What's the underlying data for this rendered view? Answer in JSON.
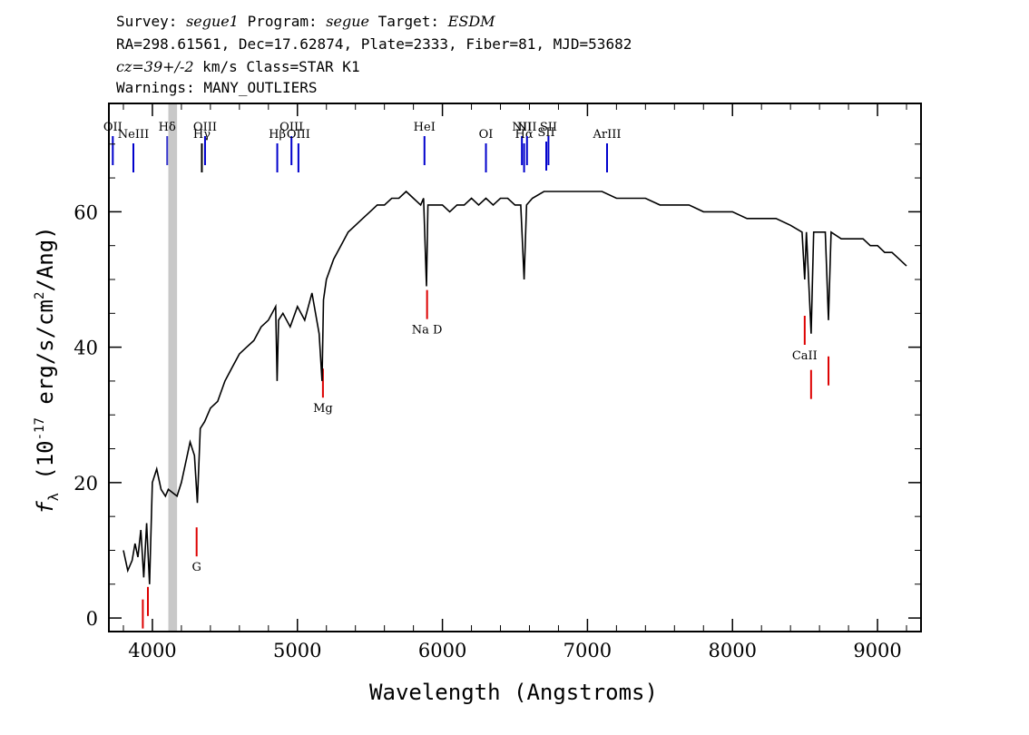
{
  "header": {
    "line1": {
      "survey_label": "Survey: ",
      "survey": "segue1",
      "program_label": " Program: ",
      "program": "segue",
      "target_label": " Target: ",
      "target": "ESDM"
    },
    "line2": "RA=298.61561, Dec=17.62874, Plate=2333, Fiber=81, MJD=53682",
    "line3": {
      "cz": "cz=39+/-2",
      "rest": " km/s Class=STAR K1"
    },
    "line4": "Warnings: MANY_OUTLIERS"
  },
  "chart_data": {
    "type": "line",
    "xlabel": "Wavelength (Angstroms)",
    "ylabel_prefix": "f",
    "ylabel_sub": "λ",
    "ylabel_text1": " (10",
    "ylabel_sup1": "-17",
    "ylabel_text2": " erg/s/cm",
    "ylabel_sup2": "2",
    "ylabel_text3": "/Ang)",
    "xlim": [
      3700,
      9300
    ],
    "ylim": [
      -2,
      76
    ],
    "xticks": [
      4000,
      5000,
      6000,
      7000,
      8000,
      9000
    ],
    "yticks": [
      0,
      20,
      40,
      60
    ],
    "masked_band": [
      4110,
      4170
    ],
    "series": [
      {
        "color": "#000000",
        "x": [
          3800,
          3830,
          3860,
          3880,
          3900,
          3920,
          3940,
          3960,
          3980,
          4000,
          4030,
          4060,
          4090,
          4110,
          4170,
          4200,
          4230,
          4260,
          4290,
          4310,
          4330,
          4360,
          4400,
          4450,
          4500,
          4550,
          4600,
          4650,
          4700,
          4750,
          4800,
          4850,
          4860,
          4870,
          4900,
          4950,
          5000,
          5050,
          5100,
          5150,
          5170,
          5180,
          5200,
          5250,
          5300,
          5350,
          5400,
          5450,
          5500,
          5550,
          5600,
          5650,
          5700,
          5750,
          5800,
          5850,
          5870,
          5890,
          5900,
          5950,
          6000,
          6050,
          6100,
          6150,
          6200,
          6250,
          6300,
          6350,
          6400,
          6450,
          6500,
          6540,
          6563,
          6580,
          6620,
          6700,
          6800,
          6900,
          7000,
          7100,
          7200,
          7300,
          7400,
          7500,
          7600,
          7700,
          7800,
          7900,
          8000,
          8100,
          8200,
          8300,
          8400,
          8480,
          8498,
          8510,
          8542,
          8560,
          8600,
          8640,
          8662,
          8680,
          8750,
          8800,
          8850,
          8900,
          8950,
          9000,
          9050,
          9100,
          9150,
          9200
        ],
        "y": [
          10,
          7,
          8.5,
          11,
          9,
          13,
          6,
          14,
          5,
          20,
          22,
          19,
          18,
          19,
          18,
          20,
          23,
          26,
          24,
          17,
          28,
          29,
          31,
          32,
          35,
          37,
          39,
          40,
          41,
          43,
          44,
          46,
          35,
          44,
          45,
          43,
          46,
          44,
          48,
          42,
          35,
          47,
          50,
          53,
          55,
          57,
          58,
          59,
          60,
          61,
          61,
          62,
          62,
          63,
          62,
          61,
          62,
          49,
          61,
          61,
          61,
          60,
          61,
          61,
          62,
          61,
          62,
          61,
          62,
          62,
          61,
          61,
          50,
          61,
          62,
          63,
          63,
          63,
          63,
          63,
          62,
          62,
          62,
          61,
          61,
          61,
          60,
          60,
          60,
          59,
          59,
          59,
          58,
          57,
          50,
          57,
          42,
          57,
          57,
          57,
          44,
          57,
          56,
          56,
          56,
          56,
          55,
          55,
          54,
          54,
          53,
          52
        ]
      }
    ],
    "emission_lines": [
      {
        "label": "OII",
        "x": 3727,
        "color": "#0000cc"
      },
      {
        "label": "NeIII",
        "x": 3869,
        "color": "#0000cc"
      },
      {
        "label": "Hδ",
        "x": 4102,
        "color": "#3333cc"
      },
      {
        "label": "Hγ",
        "x": 4341,
        "color": "#000000"
      },
      {
        "label": "OIII",
        "x": 4363,
        "color": "#0000cc"
      },
      {
        "label": "Hβ",
        "x": 4861,
        "color": "#0000cc"
      },
      {
        "label": "OIII",
        "x": 4959,
        "color": "#0000cc"
      },
      {
        "label": "OIII",
        "x": 5007,
        "color": "#0000cc"
      },
      {
        "label": "HeI",
        "x": 5876,
        "color": "#0000cc"
      },
      {
        "label": "OI",
        "x": 6300,
        "color": "#0000cc"
      },
      {
        "label": "NII",
        "x": 6548,
        "color": "#0000cc"
      },
      {
        "label": "Hα",
        "x": 6563,
        "color": "#0000cc"
      },
      {
        "label": "NII",
        "x": 6583,
        "color": "#0000cc"
      },
      {
        "label": "SII",
        "x": 6716,
        "color": "#0000cc"
      },
      {
        "label": "SII",
        "x": 6731,
        "color": "#0000cc"
      },
      {
        "label": "ArIII",
        "x": 7135,
        "color": "#0000cc"
      }
    ],
    "absorption_lines": [
      {
        "label": "",
        "x": 3934,
        "color": "#dd0000"
      },
      {
        "label": "",
        "x": 3969,
        "color": "#dd0000"
      },
      {
        "label": "G",
        "x": 4305,
        "color": "#dd0000"
      },
      {
        "label": "Mg",
        "x": 5176,
        "color": "#dd0000"
      },
      {
        "label": "Na D",
        "x": 5894,
        "color": "#dd0000"
      },
      {
        "label": "CaII",
        "x": 8498,
        "color": "#dd0000"
      },
      {
        "label": "",
        "x": 8542,
        "color": "#dd0000"
      },
      {
        "label": "",
        "x": 8662,
        "color": "#dd0000"
      }
    ]
  }
}
